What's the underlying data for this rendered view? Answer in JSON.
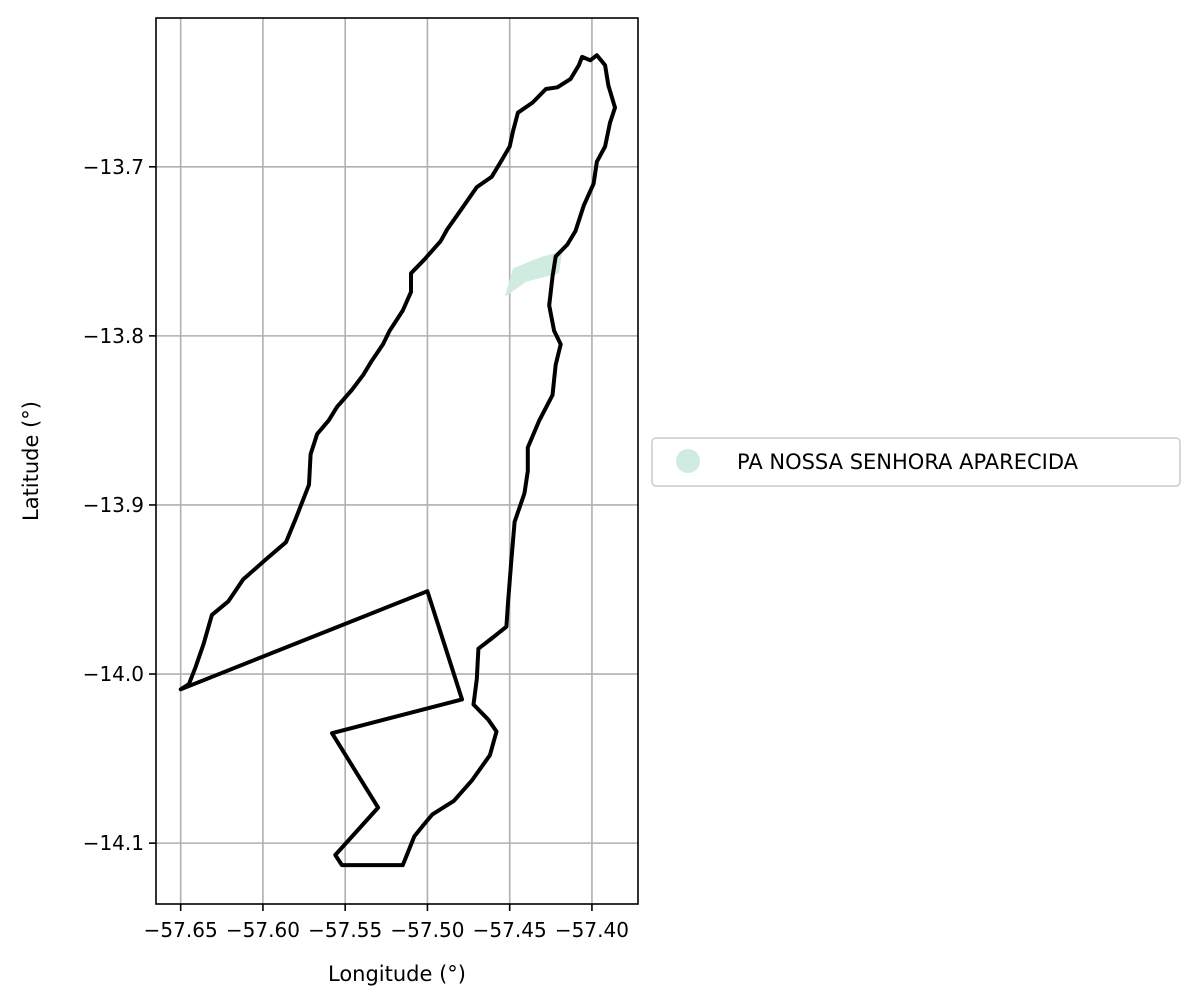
{
  "chart_data": {
    "type": "map",
    "xlabel": "Longitude (°)",
    "ylabel": "Latitude (°)",
    "xlim": [
      -57.665,
      -57.372
    ],
    "ylim": [
      -14.136,
      -13.612
    ],
    "x_ticks": [
      -57.65,
      -57.6,
      -57.55,
      -57.5,
      -57.45,
      -57.4
    ],
    "x_tick_labels": [
      "−57.65",
      "−57.60",
      "−57.55",
      "−57.50",
      "−57.45",
      "−57.40"
    ],
    "y_ticks": [
      -13.7,
      -13.8,
      -13.9,
      -14.0,
      -14.1
    ],
    "y_tick_labels": [
      "−13.7",
      "−13.8",
      "−13.9",
      "−14.0",
      "−14.1"
    ],
    "grid": true,
    "legend_position": "right",
    "series": [
      {
        "name": "PA NOSSA SENHORA APARECIDA",
        "kind": "filled-polygon",
        "color": "#d0ece0",
        "coordinates": [
          [
            -57.453,
            -13.777
          ],
          [
            -57.448,
            -13.76
          ],
          [
            -57.43,
            -13.753
          ],
          [
            -57.418,
            -13.75
          ],
          [
            -57.42,
            -13.763
          ],
          [
            -57.44,
            -13.768
          ]
        ]
      }
    ],
    "outline": {
      "color": "#000000",
      "coordinates": [
        [
          -57.397,
          -13.634
        ],
        [
          -57.392,
          -13.64
        ],
        [
          -57.39,
          -13.652
        ],
        [
          -57.386,
          -13.665
        ],
        [
          -57.389,
          -13.674
        ],
        [
          -57.392,
          -13.688
        ],
        [
          -57.397,
          -13.697
        ],
        [
          -57.399,
          -13.71
        ],
        [
          -57.405,
          -13.723
        ],
        [
          -57.41,
          -13.738
        ],
        [
          -57.415,
          -13.746
        ],
        [
          -57.422,
          -13.753
        ],
        [
          -57.424,
          -13.765
        ],
        [
          -57.426,
          -13.782
        ],
        [
          -57.423,
          -13.797
        ],
        [
          -57.419,
          -13.805
        ],
        [
          -57.422,
          -13.817
        ],
        [
          -57.424,
          -13.835
        ],
        [
          -57.432,
          -13.85
        ],
        [
          -57.439,
          -13.866
        ],
        [
          -57.439,
          -13.88
        ],
        [
          -57.441,
          -13.893
        ],
        [
          -57.447,
          -13.91
        ],
        [
          -57.449,
          -13.933
        ],
        [
          -57.451,
          -13.958
        ],
        [
          -57.452,
          -13.972
        ],
        [
          -57.461,
          -13.979
        ],
        [
          -57.469,
          -13.985
        ],
        [
          -57.47,
          -14.003
        ],
        [
          -57.472,
          -14.018
        ],
        [
          -57.463,
          -14.027
        ],
        [
          -57.458,
          -14.034
        ],
        [
          -57.462,
          -14.048
        ],
        [
          -57.473,
          -14.063
        ],
        [
          -57.484,
          -14.075
        ],
        [
          -57.497,
          -14.083
        ],
        [
          -57.503,
          -14.09
        ],
        [
          -57.508,
          -14.096
        ],
        [
          -57.515,
          -14.113
        ],
        [
          -57.552,
          -14.113
        ],
        [
          -57.556,
          -14.107
        ],
        [
          -57.53,
          -14.079
        ],
        [
          -57.558,
          -14.035
        ],
        [
          -57.479,
          -14.015
        ],
        [
          -57.5,
          -13.951
        ],
        [
          -57.65,
          -14.009
        ],
        [
          -57.645,
          -14.006
        ],
        [
          -57.641,
          -13.996
        ],
        [
          -57.636,
          -13.982
        ],
        [
          -57.631,
          -13.965
        ],
        [
          -57.621,
          -13.957
        ],
        [
          -57.612,
          -13.944
        ],
        [
          -57.598,
          -13.932
        ],
        [
          -57.586,
          -13.922
        ],
        [
          -57.58,
          -13.908
        ],
        [
          -57.572,
          -13.888
        ],
        [
          -57.571,
          -13.87
        ],
        [
          -57.567,
          -13.858
        ],
        [
          -57.56,
          -13.85
        ],
        [
          -57.555,
          -13.842
        ],
        [
          -57.546,
          -13.832
        ],
        [
          -57.539,
          -13.823
        ],
        [
          -57.534,
          -13.815
        ],
        [
          -57.527,
          -13.805
        ],
        [
          -57.523,
          -13.797
        ],
        [
          -57.515,
          -13.785
        ],
        [
          -57.51,
          -13.774
        ],
        [
          -57.51,
          -13.763
        ],
        [
          -57.502,
          -13.755
        ],
        [
          -57.492,
          -13.744
        ],
        [
          -57.488,
          -13.737
        ],
        [
          -57.48,
          -13.726
        ],
        [
          -57.47,
          -13.712
        ],
        [
          -57.461,
          -13.706
        ],
        [
          -57.456,
          -13.698
        ],
        [
          -57.45,
          -13.688
        ],
        [
          -57.448,
          -13.679
        ],
        [
          -57.445,
          -13.668
        ],
        [
          -57.436,
          -13.662
        ],
        [
          -57.428,
          -13.654
        ],
        [
          -57.421,
          -13.653
        ],
        [
          -57.413,
          -13.648
        ],
        [
          -57.408,
          -13.64
        ],
        [
          -57.406,
          -13.635
        ],
        [
          -57.401,
          -13.637
        ],
        [
          -57.397,
          -13.634
        ]
      ]
    }
  }
}
